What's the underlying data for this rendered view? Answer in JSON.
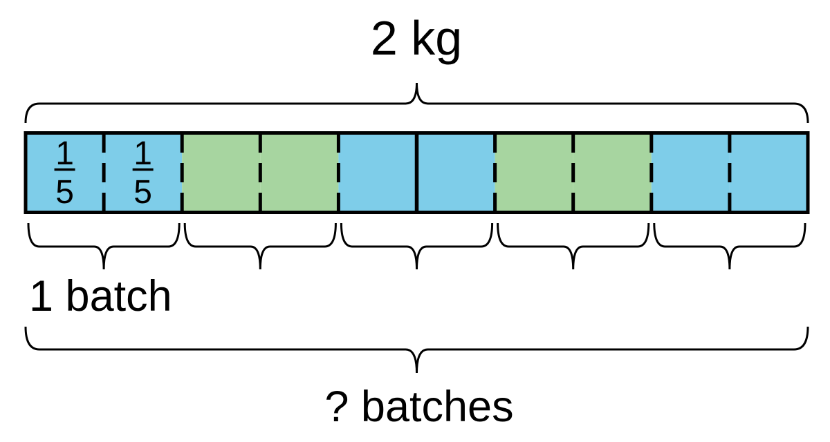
{
  "diagram": {
    "top_brace": {
      "label": "2 kg"
    },
    "tape": {
      "cells": [
        {
          "color": "blue",
          "fraction": {
            "numerator": "1",
            "denominator": "5"
          }
        },
        {
          "color": "blue",
          "fraction": {
            "numerator": "1",
            "denominator": "5"
          }
        },
        {
          "color": "green"
        },
        {
          "color": "green"
        },
        {
          "color": "blue"
        },
        {
          "color": "blue"
        },
        {
          "color": "green"
        },
        {
          "color": "green"
        },
        {
          "color": "blue"
        },
        {
          "color": "blue"
        }
      ],
      "divider_style": "dashed",
      "solid_divider_after_cell": 5
    },
    "group_braces": {
      "count": 5,
      "cells_per_group": 2,
      "first_group_label": "1 batch"
    },
    "bottom_brace": {
      "label": "? batches"
    }
  },
  "colors": {
    "blue": "#7ECDE9",
    "green": "#A7D5A0",
    "line": "#000000",
    "background": "#FFFFFF"
  }
}
